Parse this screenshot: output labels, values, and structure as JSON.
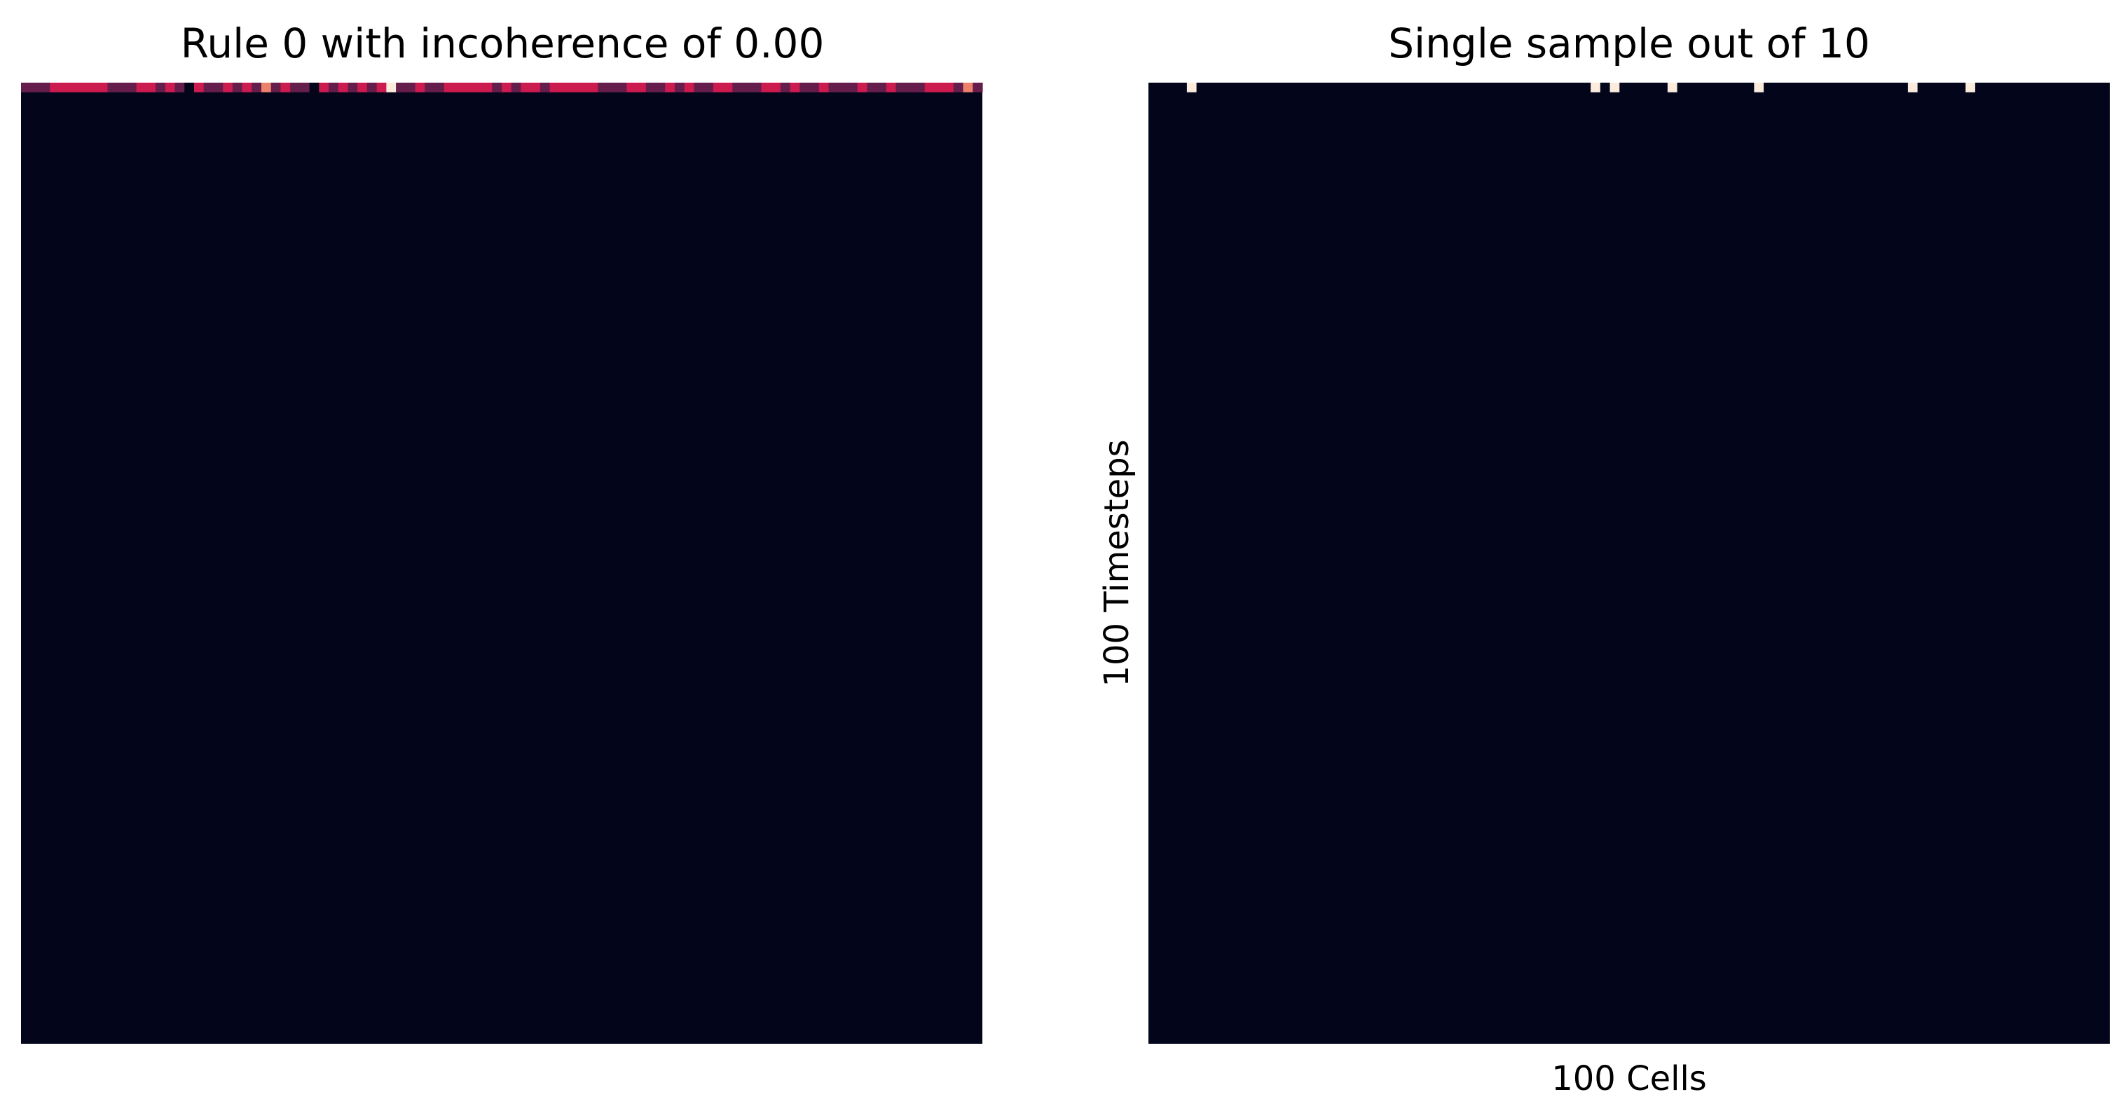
{
  "chart_data": [
    {
      "type": "heatmap",
      "title": "Rule 0 with incoherence of 0.00",
      "xlabel": "",
      "ylabel": "",
      "grid": false,
      "legend": "none",
      "n_cells": 100,
      "n_timesteps": 100,
      "background_value": 0,
      "first_row_values": [
        0.3,
        0.3,
        0.3,
        0.5,
        0.5,
        0.5,
        0.5,
        0.5,
        0.5,
        0.3,
        0.3,
        0.3,
        0.5,
        0.5,
        0.3,
        0.5,
        0.3,
        0.0,
        0.5,
        0.3,
        0.3,
        0.5,
        0.3,
        0.5,
        0.3,
        0.7,
        0.3,
        0.5,
        0.3,
        0.3,
        0.0,
        0.5,
        0.3,
        0.5,
        0.3,
        0.5,
        0.3,
        0.5,
        1.0,
        0.3,
        0.3,
        0.5,
        0.3,
        0.3,
        0.5,
        0.5,
        0.5,
        0.5,
        0.5,
        0.3,
        0.5,
        0.3,
        0.5,
        0.5,
        0.3,
        0.5,
        0.5,
        0.5,
        0.5,
        0.5,
        0.3,
        0.3,
        0.3,
        0.5,
        0.5,
        0.3,
        0.3,
        0.5,
        0.3,
        0.5,
        0.3,
        0.3,
        0.5,
        0.5,
        0.3,
        0.3,
        0.3,
        0.5,
        0.5,
        0.3,
        0.5,
        0.3,
        0.3,
        0.5,
        0.3,
        0.3,
        0.3,
        0.5,
        0.3,
        0.3,
        0.5,
        0.3,
        0.3,
        0.3,
        0.5,
        0.5,
        0.5,
        0.3,
        0.7,
        0.3
      ]
    },
    {
      "type": "heatmap",
      "title": "Single sample out of 10",
      "xlabel": "100 Cells",
      "ylabel": "100 Timesteps",
      "grid": false,
      "legend": "none",
      "n_cells": 100,
      "n_timesteps": 100,
      "background_value": 0,
      "first_row_active_cells": [
        4,
        46,
        48,
        54,
        63,
        79,
        85
      ]
    }
  ],
  "colors": {
    "background": "#03051a",
    "low": "#03051a",
    "mid_low": "#4c1d4b",
    "mid": "#cb1b4f",
    "high": "#f69c73",
    "max": "#faebdd"
  }
}
